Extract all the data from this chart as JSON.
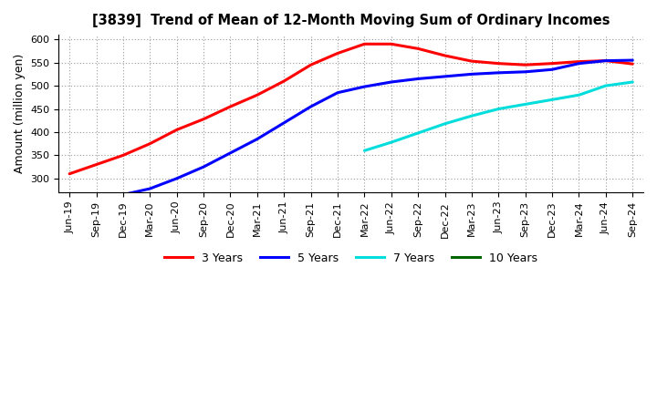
{
  "title": "[3839]  Trend of Mean of 12-Month Moving Sum of Ordinary Incomes",
  "ylabel": "Amount (million yen)",
  "ylim": [
    270,
    610
  ],
  "yticks": [
    300,
    350,
    400,
    450,
    500,
    550,
    600
  ],
  "background_color": "#ffffff",
  "grid_color": "#999999",
  "x_labels": [
    "Jun-19",
    "Sep-19",
    "Dec-19",
    "Mar-20",
    "Jun-20",
    "Sep-20",
    "Dec-20",
    "Mar-21",
    "Jun-21",
    "Sep-21",
    "Dec-21",
    "Mar-22",
    "Jun-22",
    "Sep-22",
    "Dec-22",
    "Mar-23",
    "Jun-23",
    "Sep-23",
    "Dec-23",
    "Mar-24",
    "Jun-24",
    "Sep-24"
  ],
  "series_3yr": {
    "color": "#ff0000",
    "x": [
      0,
      1,
      2,
      3,
      4,
      5,
      6,
      7,
      8,
      9,
      10,
      11,
      12,
      13,
      14,
      15,
      16,
      17,
      18,
      19,
      20,
      21
    ],
    "y": [
      310,
      330,
      350,
      375,
      405,
      428,
      455,
      480,
      510,
      545,
      570,
      590,
      590,
      580,
      565,
      553,
      548,
      545,
      548,
      552,
      554,
      547
    ]
  },
  "series_5yr": {
    "color": "#0000ff",
    "x": [
      2,
      3,
      4,
      5,
      6,
      7,
      8,
      9,
      10,
      11,
      12,
      13,
      14,
      15,
      16,
      17,
      18,
      19,
      20,
      21
    ],
    "y": [
      265,
      278,
      300,
      325,
      355,
      385,
      420,
      455,
      485,
      498,
      508,
      515,
      520,
      525,
      528,
      530,
      535,
      548,
      554,
      555
    ]
  },
  "series_7yr": {
    "color": "#00dddd",
    "x": [
      11,
      12,
      13,
      14,
      15,
      16,
      17,
      18,
      19,
      20,
      21
    ],
    "y": [
      360,
      378,
      398,
      418,
      435,
      450,
      460,
      470,
      480,
      500,
      508
    ]
  },
  "series_10yr": {
    "color": "#006600",
    "x": [],
    "y": []
  },
  "legend_labels": [
    "3 Years",
    "5 Years",
    "7 Years",
    "10 Years"
  ],
  "legend_colors": [
    "#ff0000",
    "#0000ff",
    "#00dddd",
    "#006600"
  ]
}
